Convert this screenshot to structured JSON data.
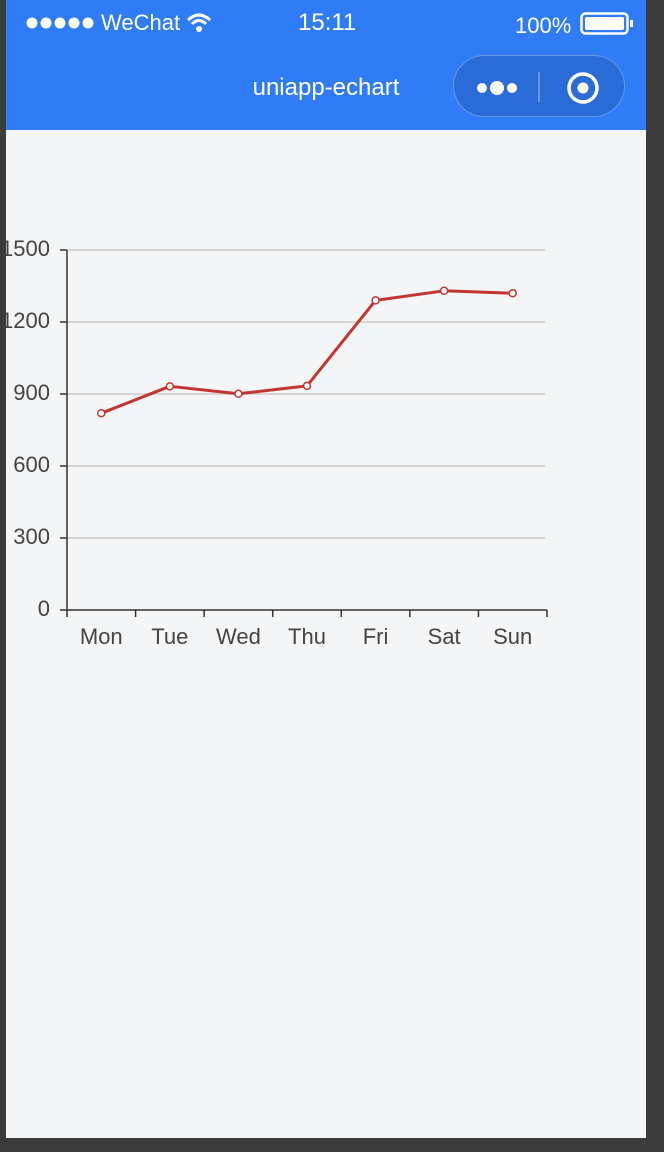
{
  "status_bar": {
    "carrier": "WeChat",
    "time": "15:11",
    "battery": "100%"
  },
  "nav": {
    "title": "uniapp-echart"
  },
  "chart_data": {
    "type": "line",
    "categories": [
      "Mon",
      "Tue",
      "Wed",
      "Thu",
      "Fri",
      "Sat",
      "Sun"
    ],
    "values": [
      820,
      932,
      901,
      934,
      1290,
      1330,
      1320
    ],
    "color": "#c23531",
    "ylim": [
      0,
      1500
    ],
    "yticks": [
      0,
      300,
      600,
      900,
      1200,
      1500
    ],
    "grid": true
  }
}
